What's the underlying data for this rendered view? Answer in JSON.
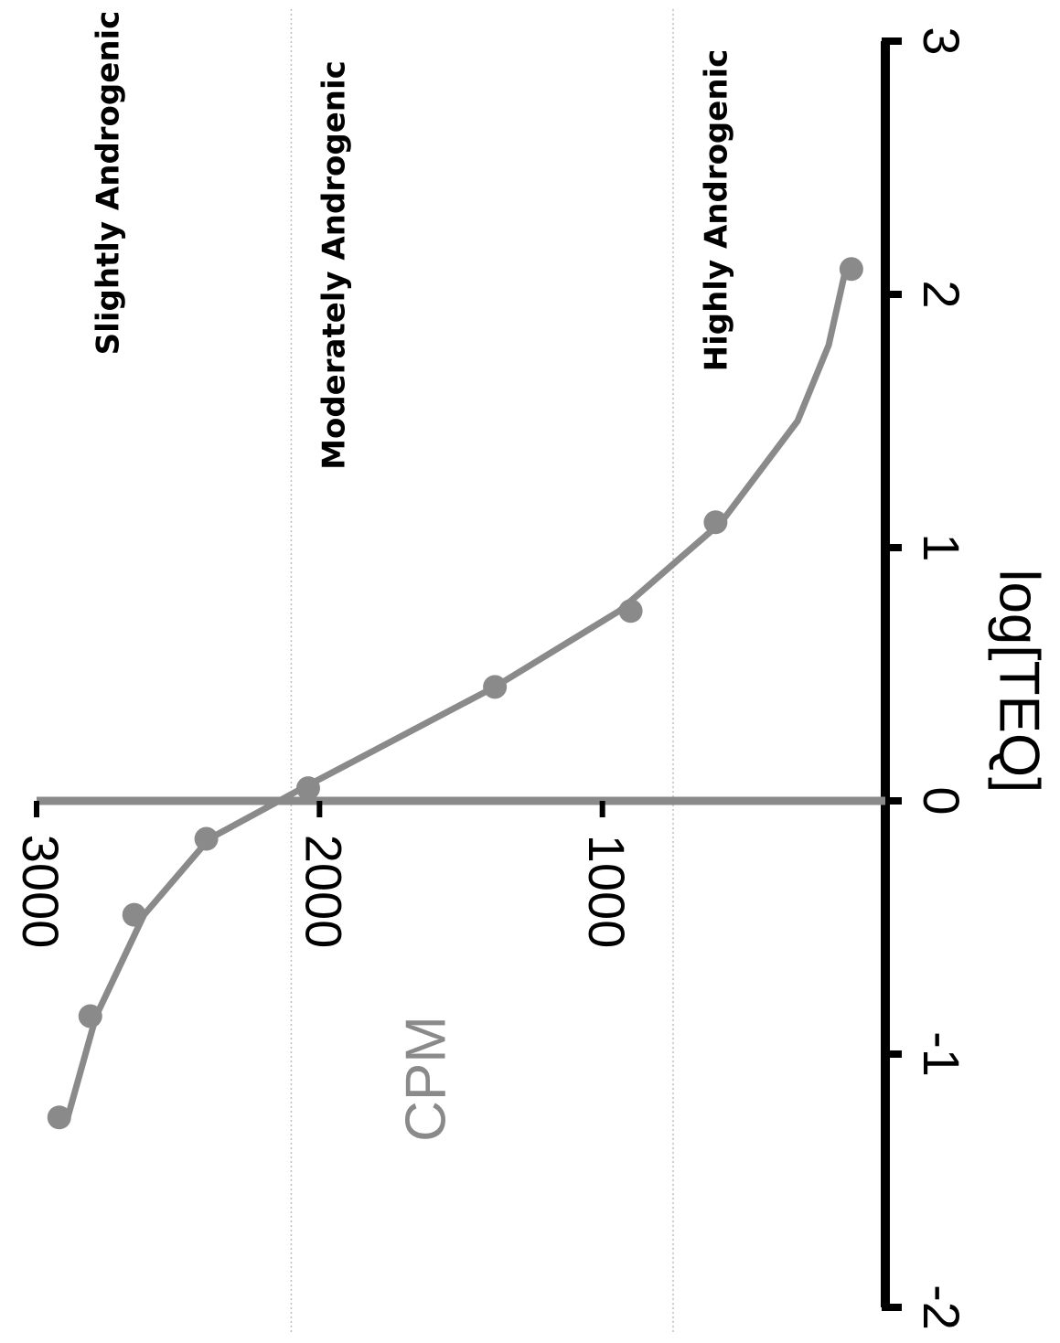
{
  "chart_data": {
    "type": "scatter",
    "orientation": "rotated-90-clockwise",
    "x_axis": {
      "label": "log[TEQ]",
      "range": [
        -2,
        3
      ],
      "ticks": [
        -2,
        -1,
        0,
        1,
        2,
        3
      ],
      "tick_labels": [
        "-2",
        "-1",
        "0",
        "1",
        "2",
        "3"
      ]
    },
    "y_axis": {
      "label": "CPM",
      "range": [
        0,
        3000
      ],
      "ticks": [
        1000,
        2000,
        3000
      ],
      "tick_labels": [
        "1000",
        "2000",
        "3000"
      ]
    },
    "series": [
      {
        "points": [
          {
            "x": -1.25,
            "y": 2920
          },
          {
            "x": -0.85,
            "y": 2810
          },
          {
            "x": -0.45,
            "y": 2655
          },
          {
            "x": -0.15,
            "y": 2400
          },
          {
            "x": 0.05,
            "y": 2040
          },
          {
            "x": 0.45,
            "y": 1380
          },
          {
            "x": 0.75,
            "y": 900
          },
          {
            "x": 1.1,
            "y": 600
          },
          {
            "x": 2.1,
            "y": 120
          }
        ],
        "fit_curve": [
          {
            "x": -1.25,
            "y": 2890
          },
          {
            "x": -0.85,
            "y": 2790
          },
          {
            "x": -0.45,
            "y": 2620
          },
          {
            "x": -0.15,
            "y": 2390
          },
          {
            "x": 0.05,
            "y": 2060
          },
          {
            "x": 0.45,
            "y": 1380
          },
          {
            "x": 0.75,
            "y": 940
          },
          {
            "x": 1.1,
            "y": 580
          },
          {
            "x": 1.5,
            "y": 310
          },
          {
            "x": 1.8,
            "y": 200
          },
          {
            "x": 2.1,
            "y": 140
          }
        ],
        "color": "#8a8a8a"
      }
    ],
    "reference_lines": [
      {
        "y": 2100,
        "label": "Moderately Androgenic"
      },
      {
        "y": 750,
        "label": "Highly Androgenic"
      }
    ],
    "regions": [
      {
        "label": "Slightly Androgenic"
      },
      {
        "label": "Moderately Androgenic"
      },
      {
        "label": "Highly Androgenic"
      }
    ],
    "grid": false,
    "colors": {
      "axis": "#000000",
      "y_axis": "#8a8a8a",
      "series": "#8a8a8a",
      "reference_line": "#bdbdbd",
      "ylabel": "#8a8a8a"
    }
  }
}
